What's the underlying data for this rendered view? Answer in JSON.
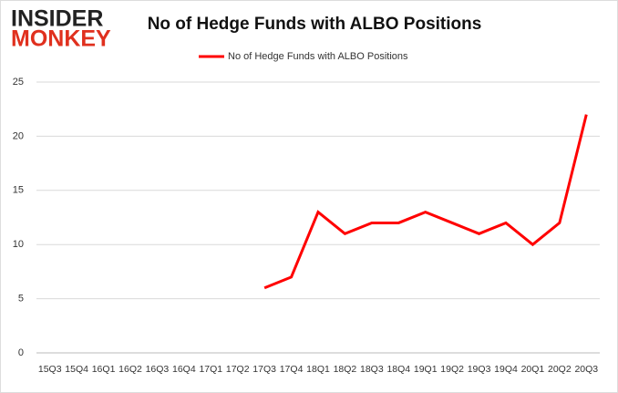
{
  "logo": {
    "top": "INSIDER",
    "bottom": "MONKEY"
  },
  "chart_data": {
    "type": "line",
    "title": "No of Hedge Funds with ALBO Positions",
    "categories": [
      "15Q3",
      "15Q4",
      "16Q1",
      "16Q2",
      "16Q3",
      "16Q4",
      "17Q1",
      "17Q2",
      "17Q3",
      "17Q4",
      "18Q1",
      "18Q2",
      "18Q3",
      "18Q4",
      "19Q1",
      "19Q2",
      "19Q3",
      "19Q4",
      "20Q1",
      "20Q2",
      "20Q3"
    ],
    "series": [
      {
        "name": "No of Hedge Funds with ALBO Positions",
        "color": "#ff0000",
        "values": [
          null,
          null,
          null,
          null,
          null,
          null,
          null,
          null,
          6,
          7,
          13,
          11,
          12,
          12,
          13,
          12,
          11,
          12,
          10,
          12,
          22
        ]
      }
    ],
    "ylim": [
      0,
      25
    ],
    "yticks": [
      0,
      5,
      10,
      15,
      20,
      25
    ],
    "grid": true,
    "legend": "top"
  }
}
